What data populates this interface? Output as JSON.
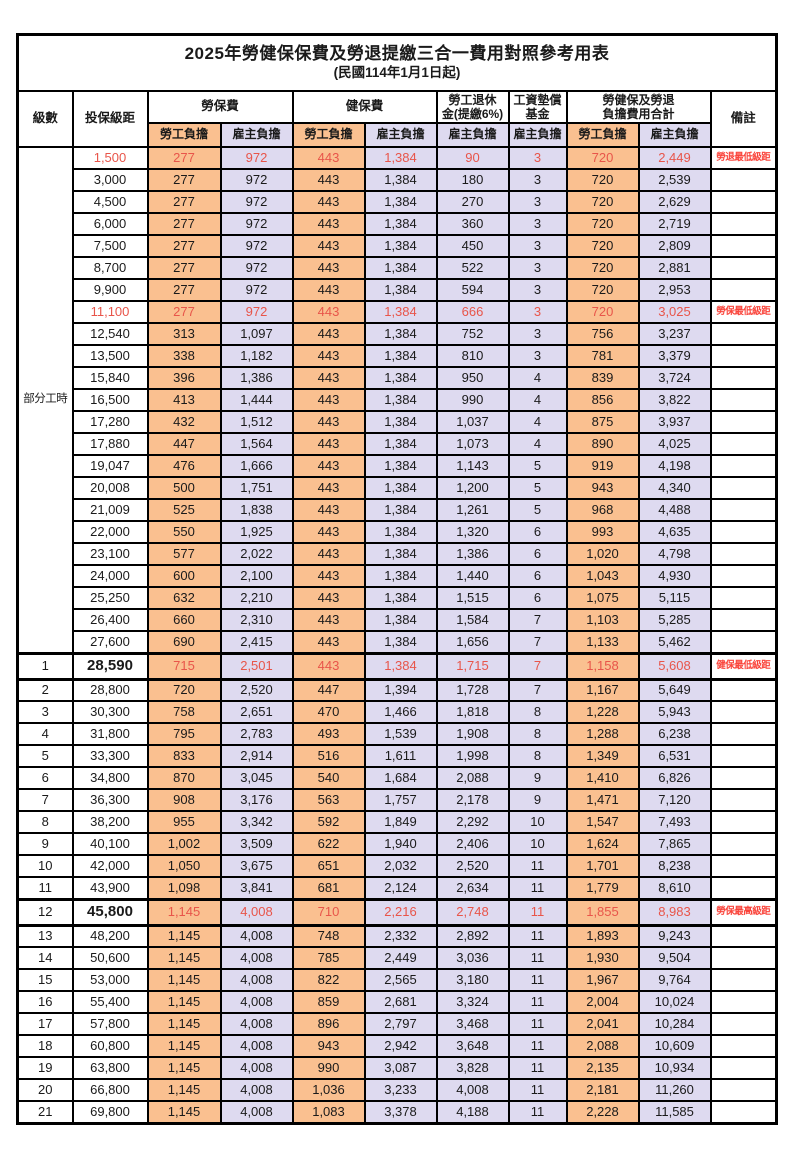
{
  "title": "2025年勞健保保費及勞退提繳三合一費用對照參考用表",
  "subtitle": "(民國114年1月1日起)",
  "colors": {
    "worker_bg": "#FAC090",
    "employer_bg": "#DEDAF0",
    "highlight_value_red": "#E8554A",
    "remark_red": "#FA453C",
    "border": "#000000"
  },
  "header": {
    "level": "級數",
    "bracket": "投保級距",
    "labor_fee": "勞保費",
    "health_fee": "健保費",
    "pension": [
      "勞工退休",
      "金(提繳6%)"
    ],
    "wage_fund": [
      "工資墊償",
      "基金"
    ],
    "total": [
      "勞健保及勞退",
      "負擔費用合計"
    ],
    "remark": "備註",
    "sub": [
      "勞工負擔",
      "雇主負擔",
      "勞工負擔",
      "雇主負擔",
      "雇主負擔",
      "雇主負擔",
      "勞工負擔",
      "雇主負擔"
    ]
  },
  "part_time_label": "部分工時",
  "part_time_rowspan": 23,
  "col_types": [
    "w",
    "e",
    "w",
    "e",
    "e",
    "e",
    "w",
    "e"
  ],
  "rows": [
    {
      "level": "",
      "bracket": "1,500",
      "values": [
        "277",
        "972",
        "443",
        "1,384",
        "90",
        "3",
        "720",
        "2,449"
      ],
      "remark": "勞退最低級距",
      "red": true,
      "bold": false
    },
    {
      "level": "",
      "bracket": "3,000",
      "values": [
        "277",
        "972",
        "443",
        "1,384",
        "180",
        "3",
        "720",
        "2,539"
      ],
      "remark": "",
      "red": false,
      "bold": false
    },
    {
      "level": "",
      "bracket": "4,500",
      "values": [
        "277",
        "972",
        "443",
        "1,384",
        "270",
        "3",
        "720",
        "2,629"
      ],
      "remark": "",
      "red": false,
      "bold": false
    },
    {
      "level": "",
      "bracket": "6,000",
      "values": [
        "277",
        "972",
        "443",
        "1,384",
        "360",
        "3",
        "720",
        "2,719"
      ],
      "remark": "",
      "red": false,
      "bold": false
    },
    {
      "level": "",
      "bracket": "7,500",
      "values": [
        "277",
        "972",
        "443",
        "1,384",
        "450",
        "3",
        "720",
        "2,809"
      ],
      "remark": "",
      "red": false,
      "bold": false
    },
    {
      "level": "",
      "bracket": "8,700",
      "values": [
        "277",
        "972",
        "443",
        "1,384",
        "522",
        "3",
        "720",
        "2,881"
      ],
      "remark": "",
      "red": false,
      "bold": false
    },
    {
      "level": "",
      "bracket": "9,900",
      "values": [
        "277",
        "972",
        "443",
        "1,384",
        "594",
        "3",
        "720",
        "2,953"
      ],
      "remark": "",
      "red": false,
      "bold": false
    },
    {
      "level": "",
      "bracket": "11,100",
      "values": [
        "277",
        "972",
        "443",
        "1,384",
        "666",
        "3",
        "720",
        "3,025"
      ],
      "remark": "勞保最低級距",
      "red": true,
      "bold": false
    },
    {
      "level": "",
      "bracket": "12,540",
      "values": [
        "313",
        "1,097",
        "443",
        "1,384",
        "752",
        "3",
        "756",
        "3,237"
      ],
      "remark": "",
      "red": false,
      "bold": false
    },
    {
      "level": "",
      "bracket": "13,500",
      "values": [
        "338",
        "1,182",
        "443",
        "1,384",
        "810",
        "3",
        "781",
        "3,379"
      ],
      "remark": "",
      "red": false,
      "bold": false
    },
    {
      "level": "",
      "bracket": "15,840",
      "values": [
        "396",
        "1,386",
        "443",
        "1,384",
        "950",
        "4",
        "839",
        "3,724"
      ],
      "remark": "",
      "red": false,
      "bold": false
    },
    {
      "level": "",
      "bracket": "16,500",
      "values": [
        "413",
        "1,444",
        "443",
        "1,384",
        "990",
        "4",
        "856",
        "3,822"
      ],
      "remark": "",
      "red": false,
      "bold": false
    },
    {
      "level": "",
      "bracket": "17,280",
      "values": [
        "432",
        "1,512",
        "443",
        "1,384",
        "1,037",
        "4",
        "875",
        "3,937"
      ],
      "remark": "",
      "red": false,
      "bold": false
    },
    {
      "level": "",
      "bracket": "17,880",
      "values": [
        "447",
        "1,564",
        "443",
        "1,384",
        "1,073",
        "4",
        "890",
        "4,025"
      ],
      "remark": "",
      "red": false,
      "bold": false
    },
    {
      "level": "",
      "bracket": "19,047",
      "values": [
        "476",
        "1,666",
        "443",
        "1,384",
        "1,143",
        "5",
        "919",
        "4,198"
      ],
      "remark": "",
      "red": false,
      "bold": false
    },
    {
      "level": "",
      "bracket": "20,008",
      "values": [
        "500",
        "1,751",
        "443",
        "1,384",
        "1,200",
        "5",
        "943",
        "4,340"
      ],
      "remark": "",
      "red": false,
      "bold": false
    },
    {
      "level": "",
      "bracket": "21,009",
      "values": [
        "525",
        "1,838",
        "443",
        "1,384",
        "1,261",
        "5",
        "968",
        "4,488"
      ],
      "remark": "",
      "red": false,
      "bold": false
    },
    {
      "level": "",
      "bracket": "22,000",
      "values": [
        "550",
        "1,925",
        "443",
        "1,384",
        "1,320",
        "6",
        "993",
        "4,635"
      ],
      "remark": "",
      "red": false,
      "bold": false
    },
    {
      "level": "",
      "bracket": "23,100",
      "values": [
        "577",
        "2,022",
        "443",
        "1,384",
        "1,386",
        "6",
        "1,020",
        "4,798"
      ],
      "remark": "",
      "red": false,
      "bold": false
    },
    {
      "level": "",
      "bracket": "24,000",
      "values": [
        "600",
        "2,100",
        "443",
        "1,384",
        "1,440",
        "6",
        "1,043",
        "4,930"
      ],
      "remark": "",
      "red": false,
      "bold": false
    },
    {
      "level": "",
      "bracket": "25,250",
      "values": [
        "632",
        "2,210",
        "443",
        "1,384",
        "1,515",
        "6",
        "1,075",
        "5,115"
      ],
      "remark": "",
      "red": false,
      "bold": false
    },
    {
      "level": "",
      "bracket": "26,400",
      "values": [
        "660",
        "2,310",
        "443",
        "1,384",
        "1,584",
        "7",
        "1,103",
        "5,285"
      ],
      "remark": "",
      "red": false,
      "bold": false
    },
    {
      "level": "",
      "bracket": "27,600",
      "values": [
        "690",
        "2,415",
        "443",
        "1,384",
        "1,656",
        "7",
        "1,133",
        "5,462"
      ],
      "remark": "",
      "red": false,
      "bold": false
    },
    {
      "level": "1",
      "bracket": "28,590",
      "values": [
        "715",
        "2,501",
        "443",
        "1,384",
        "1,715",
        "7",
        "1,158",
        "5,608"
      ],
      "remark": "健保最低級距",
      "red": true,
      "bold": true
    },
    {
      "level": "2",
      "bracket": "28,800",
      "values": [
        "720",
        "2,520",
        "447",
        "1,394",
        "1,728",
        "7",
        "1,167",
        "5,649"
      ],
      "remark": "",
      "red": false,
      "bold": false
    },
    {
      "level": "3",
      "bracket": "30,300",
      "values": [
        "758",
        "2,651",
        "470",
        "1,466",
        "1,818",
        "8",
        "1,228",
        "5,943"
      ],
      "remark": "",
      "red": false,
      "bold": false
    },
    {
      "level": "4",
      "bracket": "31,800",
      "values": [
        "795",
        "2,783",
        "493",
        "1,539",
        "1,908",
        "8",
        "1,288",
        "6,238"
      ],
      "remark": "",
      "red": false,
      "bold": false
    },
    {
      "level": "5",
      "bracket": "33,300",
      "values": [
        "833",
        "2,914",
        "516",
        "1,611",
        "1,998",
        "8",
        "1,349",
        "6,531"
      ],
      "remark": "",
      "red": false,
      "bold": false
    },
    {
      "level": "6",
      "bracket": "34,800",
      "values": [
        "870",
        "3,045",
        "540",
        "1,684",
        "2,088",
        "9",
        "1,410",
        "6,826"
      ],
      "remark": "",
      "red": false,
      "bold": false
    },
    {
      "level": "7",
      "bracket": "36,300",
      "values": [
        "908",
        "3,176",
        "563",
        "1,757",
        "2,178",
        "9",
        "1,471",
        "7,120"
      ],
      "remark": "",
      "red": false,
      "bold": false
    },
    {
      "level": "8",
      "bracket": "38,200",
      "values": [
        "955",
        "3,342",
        "592",
        "1,849",
        "2,292",
        "10",
        "1,547",
        "7,493"
      ],
      "remark": "",
      "red": false,
      "bold": false
    },
    {
      "level": "9",
      "bracket": "40,100",
      "values": [
        "1,002",
        "3,509",
        "622",
        "1,940",
        "2,406",
        "10",
        "1,624",
        "7,865"
      ],
      "remark": "",
      "red": false,
      "bold": false
    },
    {
      "level": "10",
      "bracket": "42,000",
      "values": [
        "1,050",
        "3,675",
        "651",
        "2,032",
        "2,520",
        "11",
        "1,701",
        "8,238"
      ],
      "remark": "",
      "red": false,
      "bold": false
    },
    {
      "level": "11",
      "bracket": "43,900",
      "values": [
        "1,098",
        "3,841",
        "681",
        "2,124",
        "2,634",
        "11",
        "1,779",
        "8,610"
      ],
      "remark": "",
      "red": false,
      "bold": false
    },
    {
      "level": "12",
      "bracket": "45,800",
      "values": [
        "1,145",
        "4,008",
        "710",
        "2,216",
        "2,748",
        "11",
        "1,855",
        "8,983"
      ],
      "remark": "勞保最高級距",
      "red": true,
      "bold": true
    },
    {
      "level": "13",
      "bracket": "48,200",
      "values": [
        "1,145",
        "4,008",
        "748",
        "2,332",
        "2,892",
        "11",
        "1,893",
        "9,243"
      ],
      "remark": "",
      "red": false,
      "bold": false
    },
    {
      "level": "14",
      "bracket": "50,600",
      "values": [
        "1,145",
        "4,008",
        "785",
        "2,449",
        "3,036",
        "11",
        "1,930",
        "9,504"
      ],
      "remark": "",
      "red": false,
      "bold": false
    },
    {
      "level": "15",
      "bracket": "53,000",
      "values": [
        "1,145",
        "4,008",
        "822",
        "2,565",
        "3,180",
        "11",
        "1,967",
        "9,764"
      ],
      "remark": "",
      "red": false,
      "bold": false
    },
    {
      "level": "16",
      "bracket": "55,400",
      "values": [
        "1,145",
        "4,008",
        "859",
        "2,681",
        "3,324",
        "11",
        "2,004",
        "10,024"
      ],
      "remark": "",
      "red": false,
      "bold": false
    },
    {
      "level": "17",
      "bracket": "57,800",
      "values": [
        "1,145",
        "4,008",
        "896",
        "2,797",
        "3,468",
        "11",
        "2,041",
        "10,284"
      ],
      "remark": "",
      "red": false,
      "bold": false
    },
    {
      "level": "18",
      "bracket": "60,800",
      "values": [
        "1,145",
        "4,008",
        "943",
        "2,942",
        "3,648",
        "11",
        "2,088",
        "10,609"
      ],
      "remark": "",
      "red": false,
      "bold": false
    },
    {
      "level": "19",
      "bracket": "63,800",
      "values": [
        "1,145",
        "4,008",
        "990",
        "3,087",
        "3,828",
        "11",
        "2,135",
        "10,934"
      ],
      "remark": "",
      "red": false,
      "bold": false
    },
    {
      "level": "20",
      "bracket": "66,800",
      "values": [
        "1,145",
        "4,008",
        "1,036",
        "3,233",
        "4,008",
        "11",
        "2,181",
        "11,260"
      ],
      "remark": "",
      "red": false,
      "bold": false
    },
    {
      "level": "21",
      "bracket": "69,800",
      "values": [
        "1,145",
        "4,008",
        "1,083",
        "3,378",
        "4,188",
        "11",
        "2,228",
        "11,585"
      ],
      "remark": "",
      "red": false,
      "bold": false
    }
  ]
}
